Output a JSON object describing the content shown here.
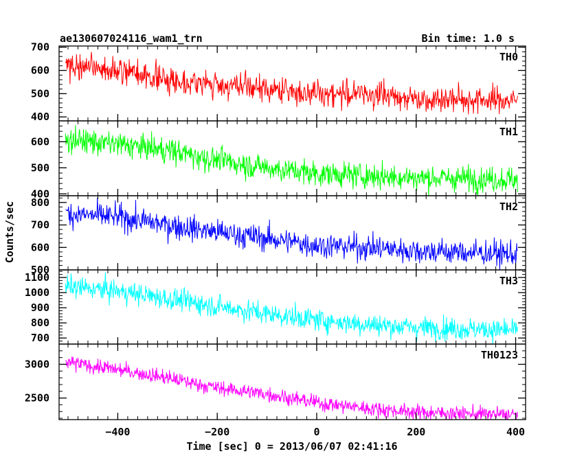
{
  "header": {
    "title": "ae130607024116_wam1_trn",
    "bin_time": "Bin time: 1.0 s"
  },
  "chart_data": {
    "type": "line",
    "xlabel": "Time [sec] 0 = 2013/06/07 02:41:16",
    "ylabel": "Counts/sec",
    "xlim": [
      -518,
      420
    ],
    "x_ticks": [
      -400,
      -200,
      0,
      200,
      400
    ],
    "x_minor_step": 20,
    "grid": false,
    "time_range": [
      -505,
      404
    ],
    "bin": 1.0,
    "panels": [
      {
        "label": "TH0",
        "color": "#ff0000",
        "ylim": [
          383,
          705
        ],
        "y_ticks": [
          400,
          500,
          600,
          700
        ],
        "y_tick_labels": [
          "400",
          "500",
          "600",
          "700"
        ],
        "y_minor_step": 20,
        "trend": [
          [
            -505,
            618
          ],
          [
            -400,
            598
          ],
          [
            -300,
            560
          ],
          [
            -200,
            538
          ],
          [
            0,
            500
          ],
          [
            100,
            500
          ],
          [
            200,
            480
          ],
          [
            404,
            470
          ]
        ],
        "noise": 28
      },
      {
        "label": "TH1",
        "color": "#00ff00",
        "ylim": [
          393,
          680
        ],
        "y_ticks": [
          400,
          500,
          600
        ],
        "y_tick_labels": [
          "400",
          "500",
          "600"
        ],
        "y_minor_step": 20,
        "trend": [
          [
            -505,
            610
          ],
          [
            -400,
            590
          ],
          [
            -300,
            568
          ],
          [
            -200,
            530
          ],
          [
            -100,
            500
          ],
          [
            0,
            478
          ],
          [
            100,
            470
          ],
          [
            200,
            462
          ],
          [
            404,
            455
          ]
        ],
        "noise": 24
      },
      {
        "label": "TH2",
        "color": "#0000ff",
        "ylim": [
          500,
          830
        ],
        "y_ticks": [
          500,
          600,
          700,
          800
        ],
        "y_tick_labels": [
          "500",
          "600",
          "700",
          "800"
        ],
        "y_minor_step": 20,
        "trend": [
          [
            -505,
            750
          ],
          [
            -400,
            735
          ],
          [
            -300,
            700
          ],
          [
            -200,
            668
          ],
          [
            -100,
            640
          ],
          [
            0,
            610
          ],
          [
            100,
            600
          ],
          [
            200,
            585
          ],
          [
            404,
            570
          ]
        ],
        "noise": 28
      },
      {
        "label": "TH3",
        "color": "#00ffff",
        "ylim": [
          660,
          1150
        ],
        "y_ticks": [
          700,
          800,
          900,
          1000,
          1100
        ],
        "y_tick_labels": [
          "700",
          "800",
          "900",
          "1000",
          "1100"
        ],
        "y_minor_step": 20,
        "trend": [
          [
            -505,
            1040
          ],
          [
            -400,
            1010
          ],
          [
            -300,
            960
          ],
          [
            -200,
            910
          ],
          [
            -100,
            860
          ],
          [
            0,
            820
          ],
          [
            100,
            790
          ],
          [
            200,
            770
          ],
          [
            404,
            750
          ]
        ],
        "noise": 36
      },
      {
        "label": "TH0123",
        "color": "#ff00ff",
        "ylim": [
          2180,
          3300
        ],
        "y_ticks": [
          2500,
          3000
        ],
        "y_tick_labels": [
          "2500",
          "3000"
        ],
        "y_minor_step": 100,
        "trend": [
          [
            -505,
            3030
          ],
          [
            -400,
            2920
          ],
          [
            -300,
            2800
          ],
          [
            -200,
            2650
          ],
          [
            -100,
            2560
          ],
          [
            0,
            2430
          ],
          [
            100,
            2350
          ],
          [
            200,
            2290
          ],
          [
            404,
            2250
          ]
        ],
        "noise": 55
      }
    ]
  }
}
